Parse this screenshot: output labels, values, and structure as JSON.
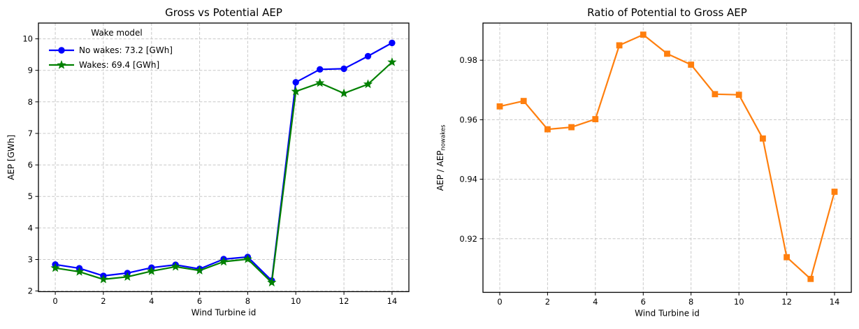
{
  "figure": {
    "background": "#ffffff",
    "axes_color": "#000000",
    "grid_color": "#c8c8c8"
  },
  "chart_data": [
    {
      "type": "line",
      "title": "Gross vs Potential AEP",
      "xlabel": "Wind Turbine id",
      "ylabel": "AEP [GWh]",
      "x": [
        0,
        1,
        2,
        3,
        4,
        5,
        6,
        7,
        8,
        9,
        10,
        11,
        12,
        13,
        14
      ],
      "xticks": [
        0,
        2,
        4,
        6,
        8,
        10,
        12,
        14
      ],
      "yticks": [
        2,
        3,
        4,
        5,
        6,
        7,
        8,
        9,
        10
      ],
      "xlim": [
        -0.7,
        14.7
      ],
      "ylim": [
        1.98,
        10.5
      ],
      "grid": true,
      "legend": {
        "title": "Wake model",
        "location": "upper left",
        "frame": false
      },
      "series": [
        {
          "id": "no-wakes",
          "name": "No wakes: 73.2 [GWh]",
          "total_gwh": 73.2,
          "color": "#0000ff",
          "marker": "circle",
          "values": [
            2.84,
            2.72,
            2.48,
            2.57,
            2.74,
            2.83,
            2.7,
            3.01,
            3.08,
            2.33,
            8.62,
            9.03,
            9.05,
            9.45,
            9.87
          ]
        },
        {
          "id": "wakes",
          "name": "Wakes: 69.4 [GWh]",
          "total_gwh": 69.4,
          "color": "#008000",
          "marker": "star",
          "values": [
            2.73,
            2.61,
            2.37,
            2.45,
            2.63,
            2.77,
            2.65,
            2.93,
            3.01,
            2.27,
            8.33,
            8.6,
            8.27,
            8.56,
            9.26
          ]
        }
      ]
    },
    {
      "type": "line",
      "title": "Ratio of Potential to Gross AEP",
      "xlabel": "Wind Turbine id",
      "ylabel": {
        "main": "AEP / AEP",
        "sub": "nowakes"
      },
      "x": [
        0,
        1,
        2,
        3,
        4,
        5,
        6,
        7,
        8,
        9,
        10,
        11,
        12,
        13,
        14
      ],
      "xticks": [
        0,
        2,
        4,
        6,
        8,
        10,
        12,
        14
      ],
      "yticks": [
        0.92,
        0.94,
        0.96,
        0.98
      ],
      "ytick_labels": [
        "0.92",
        "0.94",
        "0.96",
        "0.98"
      ],
      "xlim": [
        -0.7,
        14.7
      ],
      "ylim": [
        0.902,
        0.9925
      ],
      "grid": true,
      "series": [
        {
          "id": "aep-ratio",
          "color": "#ff7f0e",
          "marker": "square",
          "values": [
            0.9645,
            0.9663,
            0.9568,
            0.9575,
            0.9602,
            0.985,
            0.9886,
            0.9822,
            0.9785,
            0.9686,
            0.9684,
            0.9537,
            0.9138,
            0.9065,
            0.9358
          ]
        }
      ]
    }
  ]
}
